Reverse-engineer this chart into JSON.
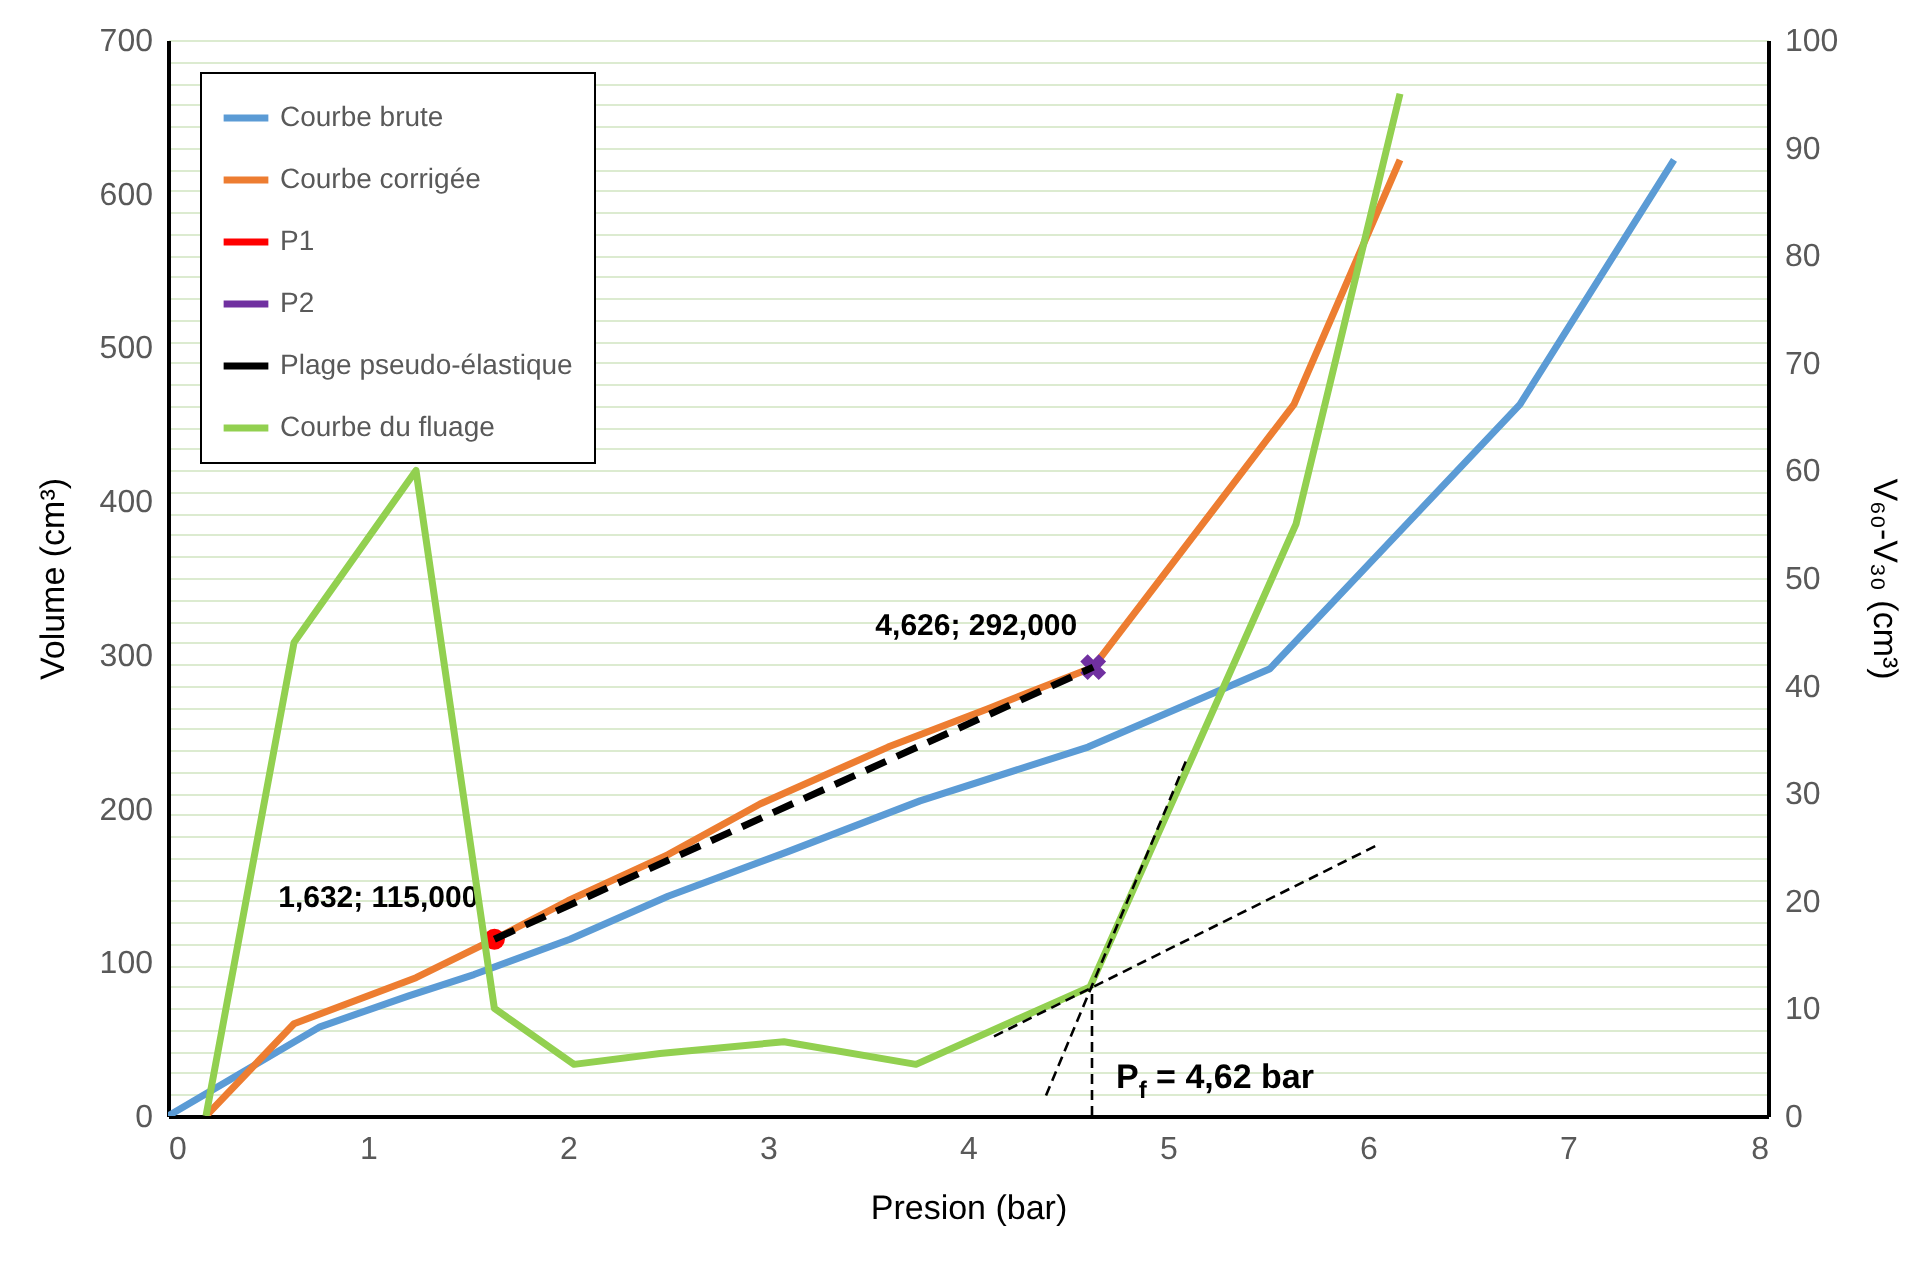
{
  "chart_data": {
    "type": "line",
    "xlabel": "Presion (bar)",
    "ylabel": "Volume (cm³)",
    "y2label": "V₆₀-V₃₀ (cm³)",
    "xlim": [
      0,
      8
    ],
    "xticks": [
      0,
      1,
      2,
      3,
      4,
      5,
      6,
      7,
      8
    ],
    "ylim": [
      0,
      700
    ],
    "yticks": [
      0,
      100,
      200,
      300,
      400,
      500,
      600,
      700
    ],
    "y2lim": [
      0,
      100
    ],
    "y2ticks": [
      0,
      {
        "value": 2,
        "label": null
      },
      {
        "value": 4,
        "label": null
      },
      {
        "value": 6,
        "label": null
      },
      {
        "value": 8,
        "label": null
      },
      10,
      {
        "value": 12,
        "label": null
      },
      {
        "value": 14,
        "label": null
      },
      {
        "value": 16,
        "label": null
      },
      {
        "value": 18,
        "label": null
      },
      20,
      {
        "value": 22,
        "label": null
      },
      {
        "value": 24,
        "label": null
      },
      {
        "value": 26,
        "label": null
      },
      {
        "value": 28,
        "label": null
      },
      30,
      {
        "value": 32,
        "label": null
      },
      {
        "value": 34,
        "label": null
      },
      {
        "value": 36,
        "label": null
      },
      {
        "value": 38,
        "label": null
      },
      40,
      {
        "value": 42,
        "label": null
      },
      {
        "value": 44,
        "label": null
      },
      {
        "value": 46,
        "label": null
      },
      {
        "value": 48,
        "label": null
      },
      50,
      {
        "value": 52,
        "label": null
      },
      {
        "value": 54,
        "label": null
      },
      {
        "value": 56,
        "label": null
      },
      {
        "value": 58,
        "label": null
      },
      60,
      {
        "value": 62,
        "label": null
      },
      {
        "value": 64,
        "label": null
      },
      {
        "value": 66,
        "label": null
      },
      {
        "value": 68,
        "label": null
      },
      70,
      {
        "value": 72,
        "label": null
      },
      {
        "value": 74,
        "label": null
      },
      {
        "value": 76,
        "label": null
      },
      {
        "value": 78,
        "label": null
      },
      80,
      {
        "value": 82,
        "label": null
      },
      {
        "value": 84,
        "label": null
      },
      {
        "value": 86,
        "label": null
      },
      {
        "value": 88,
        "label": null
      },
      90,
      {
        "value": 92,
        "label": null
      },
      {
        "value": 94,
        "label": null
      },
      {
        "value": 96,
        "label": null
      },
      {
        "value": 98,
        "label": null
      },
      100
    ],
    "grid": "y2",
    "legend": "top left",
    "series": [
      {
        "name": "Courbe brute",
        "color": "#5b9bd5",
        "x": [
          0,
          0.76,
          1.2,
          1.53,
          2.01,
          2.5,
          3.1,
          3.76,
          4.6,
          5.51,
          6.76,
          7.53
        ],
        "values": [
          0,
          58,
          78,
          92,
          115,
          143,
          172,
          205,
          240,
          291,
          463,
          622
        ]
      },
      {
        "name": "Courbe corrigée",
        "color": "#ed7d31",
        "x": [
          0.19,
          0.63,
          1.24,
          1.632,
          2.0,
          2.5,
          2.96,
          3.6,
          4.1,
          4.626,
          5.63,
          6.16
        ],
        "values": [
          0,
          60,
          90,
          115,
          140,
          170,
          203,
          240,
          265,
          292,
          463,
          622
        ]
      },
      {
        "name": "P1",
        "color": "#ff0000",
        "x": [
          1.632
        ],
        "values": [
          115
        ],
        "marker": "circle"
      },
      {
        "name": "P2",
        "color": "#7030a0",
        "x": [
          4.626
        ],
        "values": [
          292
        ],
        "marker": "cross"
      },
      {
        "name": "Plage pseudo-élastique",
        "color": "#000000",
        "x": [
          1.632,
          4.626
        ],
        "values": [
          115,
          292
        ],
        "line_style": "dashed"
      },
      {
        "name": "Courbe du fluage",
        "color": "#92d050",
        "axis": "y2",
        "x": [
          0.19,
          0.63,
          1.24,
          1.632,
          2.03,
          2.46,
          3.08,
          3.74,
          4.61,
          5.64,
          6.16
        ],
        "values": [
          0,
          44,
          60,
          10,
          4.8,
          5.8,
          6.9,
          4.8,
          12,
          55,
          95
        ]
      },
      {
        "color": "#000000",
        "axis": "y2",
        "line_style": "dashed",
        "x": [
          4.13,
          6.06
        ],
        "values": [
          7.4,
          25.3
        ]
      },
      {
        "color": "#000000",
        "axis": "y2",
        "line_style": "dashed",
        "x": [
          4.39,
          5.09
        ],
        "values": [
          1.9,
          33
        ]
      },
      {
        "color": "#000000",
        "axis": "y2",
        "line_style": "dashed",
        "x": [
          4.62,
          4.62
        ],
        "values": [
          0,
          12
        ]
      }
    ],
    "annotations": [
      {
        "text": "1,632; 115,000",
        "x": 1.632,
        "y": 115
      },
      {
        "text": "4,626; 292,000",
        "x": 4.626,
        "y": 292
      },
      {
        "text": "P$_{f}$ = 4,62 bar",
        "x": 4.62,
        "y": 0
      }
    ]
  }
}
